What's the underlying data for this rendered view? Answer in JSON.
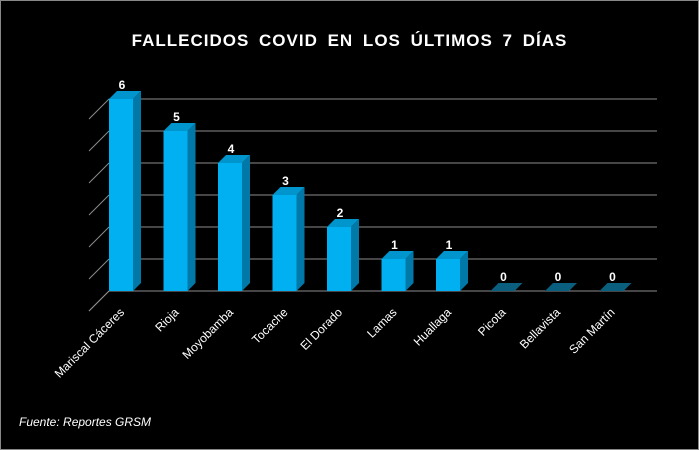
{
  "chart_data": {
    "type": "bar",
    "title": "FALLECIDOS  COVID  EN LOS  ÚLTIMOS  7 DÍAS",
    "categories": [
      "Mariscal Cáceres",
      "Rioja",
      "Moyobamba",
      "Tocache",
      "El Dorado",
      "Lamas",
      "Huallaga",
      "Picota",
      "Bellavista",
      "San Martín"
    ],
    "values": [
      6,
      5,
      4,
      3,
      2,
      1,
      1,
      0,
      0,
      0
    ],
    "xlabel": "",
    "ylabel": "",
    "ylim": [
      0,
      6
    ],
    "grid": true,
    "bar_color": "#00b0f0",
    "bar_side_color": "#0078a8",
    "bar_top_color": "#0095cc",
    "gridline_color": "#8c8c8c"
  },
  "source": "Fuente: Reportes GRSM"
}
